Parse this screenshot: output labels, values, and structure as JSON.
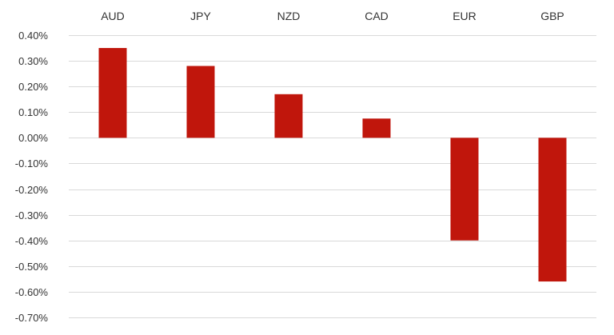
{
  "chart_data": {
    "type": "bar",
    "categories": [
      "AUD",
      "JPY",
      "NZD",
      "CAD",
      "EUR",
      "GBP"
    ],
    "values": [
      0.35,
      0.28,
      0.17,
      0.075,
      -0.4,
      -0.56
    ],
    "ylim": [
      -0.7,
      0.4
    ],
    "yticks": [
      "0.40%",
      "0.30%",
      "0.20%",
      "0.10%",
      "0.00%",
      "-0.10%",
      "-0.20%",
      "-0.30%",
      "-0.40%",
      "-0.50%",
      "-0.60%",
      "-0.70%"
    ],
    "ytick_values": [
      0.4,
      0.3,
      0.2,
      0.1,
      0.0,
      -0.1,
      -0.2,
      -0.3,
      -0.4,
      -0.5,
      -0.6,
      -0.7
    ],
    "category_axis_position": "top",
    "grid": true,
    "bar_color": "#c0160c",
    "title": "",
    "xlabel": "",
    "ylabel": ""
  }
}
